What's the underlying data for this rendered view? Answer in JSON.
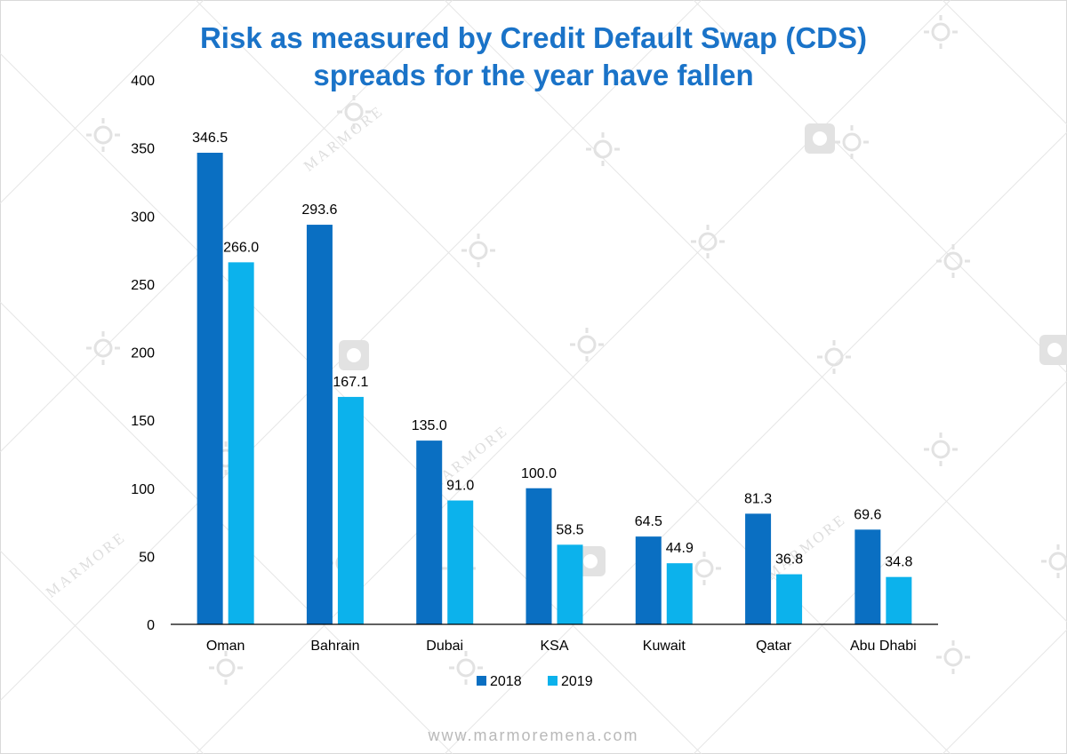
{
  "watermark": {
    "brand_text": "MARMORE"
  },
  "footer": {
    "url": "www.marmoremena.com"
  },
  "chart_data": {
    "type": "bar",
    "title_lines": [
      "Risk as measured by Credit Default Swap (CDS)",
      "spreads for the year have fallen"
    ],
    "xlabel": "",
    "ylabel": "",
    "categories": [
      "Oman",
      "Bahrain",
      "Dubai",
      "KSA",
      "Kuwait",
      "Qatar",
      "Abu Dhabi"
    ],
    "series": [
      {
        "name": "2018",
        "color": "#0a6fc2",
        "values": [
          346.5,
          293.6,
          135.0,
          100.0,
          64.5,
          81.3,
          69.6
        ]
      },
      {
        "name": "2019",
        "color": "#0cb2ec",
        "values": [
          266.0,
          167.1,
          91.0,
          58.5,
          44.9,
          36.8,
          34.8
        ]
      }
    ],
    "ylim": [
      0,
      400
    ],
    "yticks": [
      0,
      50,
      100,
      150,
      200,
      250,
      300,
      350,
      400
    ],
    "data_labels": true,
    "grid": false,
    "legend_position": "bottom"
  }
}
